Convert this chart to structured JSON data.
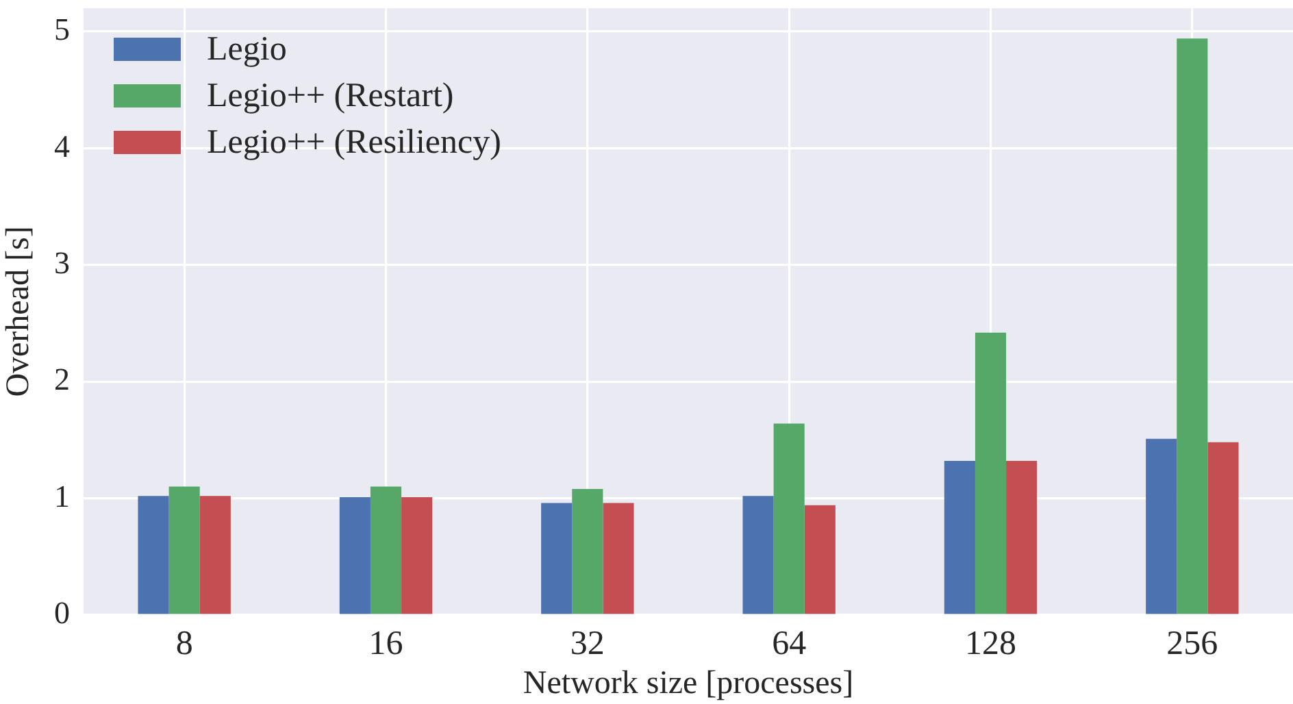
{
  "chart_data": {
    "type": "bar",
    "xlabel": "Network size [processes]",
    "ylabel": "Overhead [s]",
    "categories": [
      "8",
      "16",
      "32",
      "64",
      "128",
      "256"
    ],
    "series": [
      {
        "name": "Legio",
        "color": "#4c72b0",
        "values": [
          1.02,
          1.01,
          0.96,
          1.02,
          1.32,
          1.51
        ]
      },
      {
        "name": "Legio++ (Restart)",
        "color": "#55a868",
        "values": [
          1.1,
          1.1,
          1.08,
          1.64,
          2.42,
          4.94
        ]
      },
      {
        "name": "Legio++ (Resiliency)",
        "color": "#c44e52",
        "values": [
          1.02,
          1.01,
          0.96,
          0.94,
          1.32,
          1.48
        ]
      }
    ],
    "ylim": [
      0,
      5.2
    ],
    "yticks": [
      0,
      1,
      2,
      3,
      4,
      5
    ],
    "grid": true,
    "legend": "top left"
  }
}
